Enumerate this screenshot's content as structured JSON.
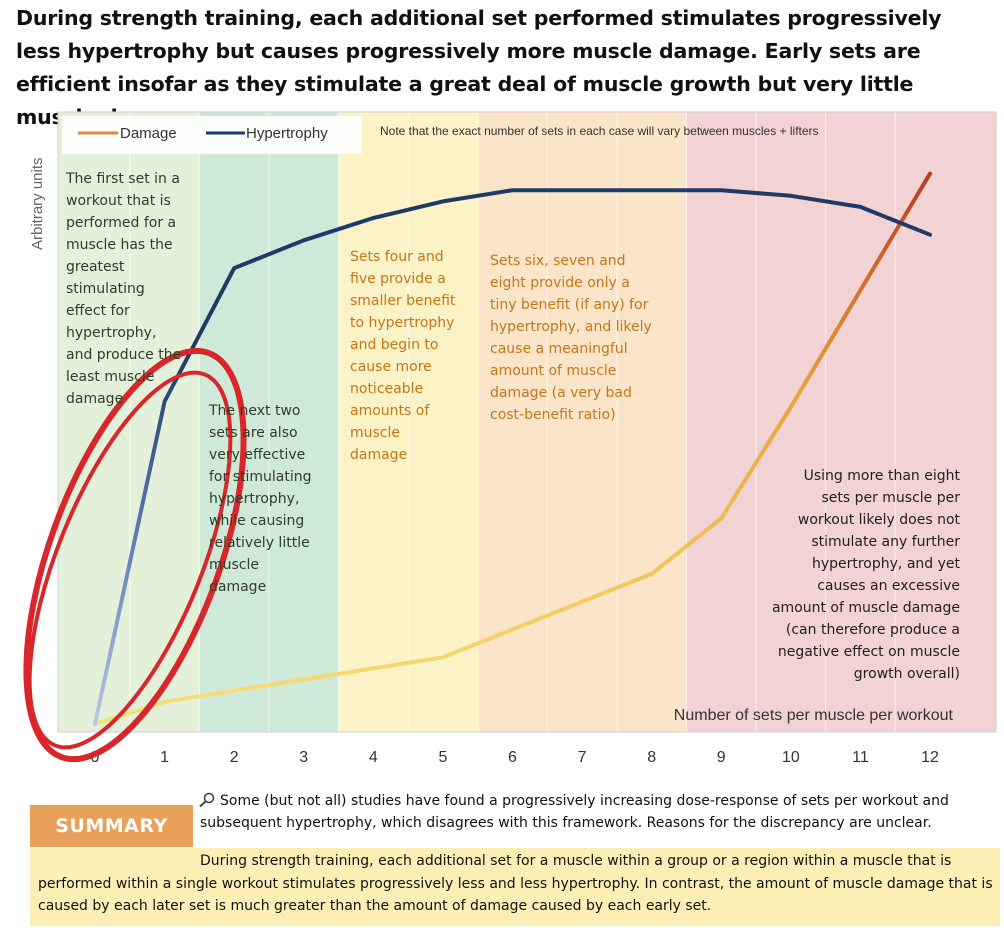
{
  "headline": "During strength training, each additional set performed stimulates progressively less hypertrophy but causes progressively more muscle damage. Early sets are efficient insofar as they stimulate a great deal of muscle growth but very little muscle damage.",
  "colors": {
    "damage": "#e8a33a",
    "hypertrophy": "#1e3a68",
    "zone_first": "#e4f1da",
    "zone_two": "#cfe9d8",
    "zone_mid": "#fbf2c6",
    "zone_six": "#fbe5c9",
    "zone_high": "#f2d2d2",
    "circle": "#d8262b"
  },
  "annotations": {
    "first_set": "The first set in a\nworkout that is\nperformed for a\nmuscle has the\ngreatest\nstimulating\neffect for\nhypertrophy,\nand produce the\nleast muscle\ndamage",
    "next_two": "The next two\nsets are also\nvery effective\nfor stimulating\nhypertrophy,\nwhile causing\nrelatively little\nmuscle\ndamage",
    "four_five": "Sets four and\nfive provide a\nsmaller benefit\nto hypertrophy\nand begin to\ncause more\nnoticeable\namounts of\nmuscle\ndamage",
    "six_eight": "Sets six, seven and\neight provide only a\ntiny benefit (if any) for\nhypertrophy, and likely\ncause a meaningful\namount of muscle\ndamage (a very bad\ncost-benefit ratio)",
    "over_eight": "Using more  than eight\nsets per muscle per\nworkout likely does not\nstimulate any further\nhypertrophy, and yet\ncauses an excessive\namount of muscle damage\n(can therefore produce a\nnegative effect on muscle\ngrowth overall)"
  },
  "note": "Note that the exact number of sets in each case will vary between muscles + lifters",
  "bottom": {
    "study_note": "Some (but not all) studies have found a progressively increasing dose-response of sets per workout and subsequent hypertrophy, which disagrees with this framework. Reasons for the discrepancy are unclear.",
    "summary_label": "SUMMARY",
    "summary_text": "During strength training, each additional set for a muscle within a group or a region within a muscle that is performed within a single workout stimulates progressively less and less hypertrophy. In contrast, the amount of muscle damage that is caused by each later set is much greater than the amount of damage caused by each early set."
  },
  "chart_data": {
    "type": "line",
    "title": "",
    "xlabel": "Number of sets per muscle per workout",
    "ylabel": "Arbitrary units",
    "x": [
      0,
      1,
      2,
      3,
      4,
      5,
      6,
      7,
      8,
      9,
      10,
      11,
      12
    ],
    "x_tick_labels": [
      "0",
      "1",
      "2",
      "3",
      "4",
      "5",
      "6",
      "7",
      "8",
      "9",
      "10",
      "11",
      "12"
    ],
    "xlim": [
      0,
      12.6
    ],
    "ylim": [
      0,
      100
    ],
    "series": [
      {
        "name": "Damage",
        "values": [
          0,
          4,
          6,
          8,
          10,
          12,
          17,
          22,
          27,
          37,
          57,
          78,
          99
        ]
      },
      {
        "name": "Hypertrophy",
        "values": [
          0,
          58,
          82,
          87,
          91,
          94,
          96,
          96,
          96,
          96,
          95,
          93,
          88
        ]
      }
    ],
    "zones": [
      {
        "from": 0,
        "to": 0.5,
        "label": "first set"
      },
      {
        "from": 0.5,
        "to": 1.5,
        "label": "first set"
      },
      {
        "from": 1.5,
        "to": 3.5,
        "label": "next two sets"
      },
      {
        "from": 3.5,
        "to": 5.5,
        "label": "sets four and five"
      },
      {
        "from": 5.5,
        "to": 8.5,
        "label": "sets six to eight"
      },
      {
        "from": 8.5,
        "to": 12.6,
        "label": "more than eight sets"
      }
    ],
    "legend": "top-left",
    "grid": true
  }
}
